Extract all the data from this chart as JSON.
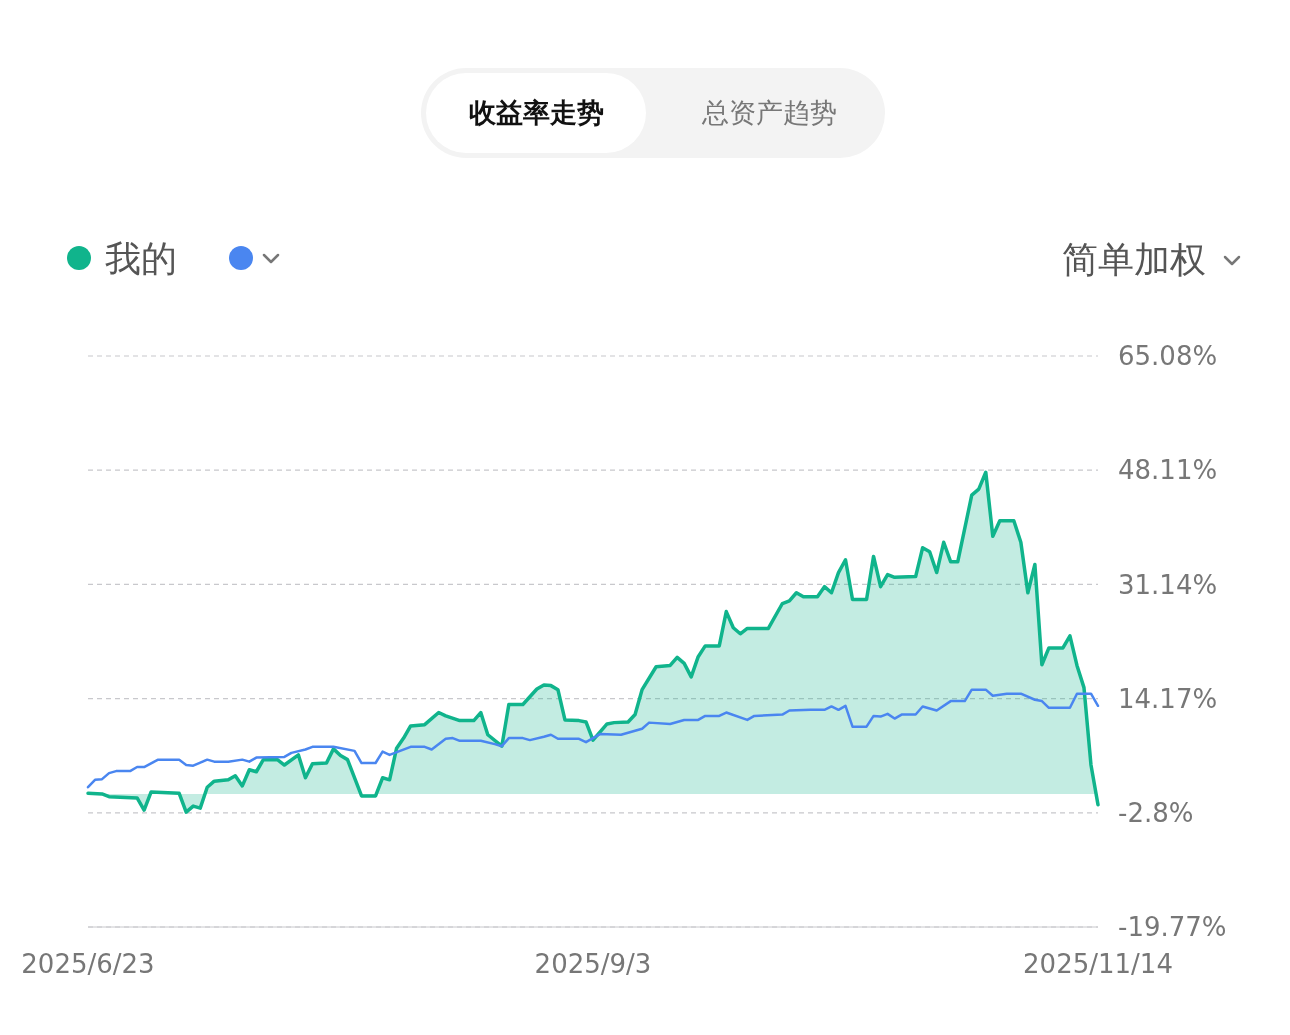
{
  "chart_data": {
    "type": "line",
    "annotations": [
      "收益率走势",
      "总资产趋势",
      "简单加权"
    ],
    "xlim": [
      "2025-06-23",
      "2025-11-14"
    ],
    "xticks": [
      {
        "value": "2025-06-23",
        "label": "2025/6/23"
      },
      {
        "value": "2025-09-03",
        "label": "2025/9/3"
      },
      {
        "value": "2025-11-14",
        "label": "2025/11/14"
      }
    ],
    "ylim": [
      -19.77,
      65.08
    ],
    "yticks": [
      {
        "value": -19.77,
        "label": "-19.77%"
      },
      {
        "value": -2.8,
        "label": "-2.8%"
      },
      {
        "value": 14.17,
        "label": "14.17%"
      },
      {
        "value": 31.14,
        "label": "31.14%"
      },
      {
        "value": 48.11,
        "label": "48.11%"
      },
      {
        "value": 65.08,
        "label": "65.08%"
      }
    ],
    "grid": "y",
    "legend": "top left",
    "line_style": "solid",
    "marker": "none",
    "series": [
      {
        "name": "我的",
        "type": "area",
        "color": "#10b48c",
        "x": [
          "2025-06-23",
          "2025-06-25",
          "2025-06-26",
          "2025-06-30",
          "2025-07-01",
          "2025-07-02",
          "2025-07-06",
          "2025-07-07",
          "2025-07-08",
          "2025-07-09",
          "2025-07-10",
          "2025-07-11",
          "2025-07-13",
          "2025-07-14",
          "2025-07-15",
          "2025-07-16",
          "2025-07-17",
          "2025-07-18",
          "2025-07-20",
          "2025-07-21",
          "2025-07-23",
          "2025-07-24",
          "2025-07-25",
          "2025-07-27",
          "2025-07-28",
          "2025-07-29",
          "2025-07-30",
          "2025-08-01",
          "2025-08-03",
          "2025-08-04",
          "2025-08-05",
          "2025-08-06",
          "2025-08-07",
          "2025-08-08",
          "2025-08-10",
          "2025-08-12",
          "2025-08-13",
          "2025-08-15",
          "2025-08-17",
          "2025-08-18",
          "2025-08-19",
          "2025-08-21",
          "2025-08-22",
          "2025-08-24",
          "2025-08-26",
          "2025-08-27",
          "2025-08-28",
          "2025-08-29",
          "2025-08-30",
          "2025-09-01",
          "2025-09-02",
          "2025-09-03",
          "2025-09-05",
          "2025-09-06",
          "2025-09-08",
          "2025-09-09",
          "2025-09-10",
          "2025-09-12",
          "2025-09-14",
          "2025-09-15",
          "2025-09-16",
          "2025-09-17",
          "2025-09-18",
          "2025-09-19",
          "2025-09-21",
          "2025-09-22",
          "2025-09-23",
          "2025-09-24",
          "2025-09-25",
          "2025-09-28",
          "2025-09-30",
          "2025-10-01",
          "2025-10-02",
          "2025-10-03",
          "2025-10-05",
          "2025-10-06",
          "2025-10-07",
          "2025-10-08",
          "2025-10-09",
          "2025-10-10",
          "2025-10-12",
          "2025-10-13",
          "2025-10-14",
          "2025-10-15",
          "2025-10-16",
          "2025-10-19",
          "2025-10-20",
          "2025-10-21",
          "2025-10-22",
          "2025-10-23",
          "2025-10-24",
          "2025-10-25",
          "2025-10-27",
          "2025-10-28",
          "2025-10-29",
          "2025-10-30",
          "2025-10-31",
          "2025-11-02",
          "2025-11-03",
          "2025-11-04",
          "2025-11-05",
          "2025-11-06",
          "2025-11-07",
          "2025-11-09",
          "2025-11-10",
          "2025-11-11",
          "2025-11-12",
          "2025-11-13",
          "2025-11-14"
        ],
        "values": [
          0.1,
          0.0,
          -0.4,
          -0.6,
          -2.4,
          0.3,
          0.1,
          -2.7,
          -1.8,
          -2.1,
          1.0,
          1.9,
          2.1,
          2.7,
          1.2,
          3.6,
          3.3,
          5.1,
          5.1,
          4.3,
          5.8,
          2.4,
          4.5,
          4.6,
          6.7,
          5.7,
          5.1,
          -0.3,
          -0.3,
          2.4,
          2.1,
          6.8,
          8.3,
          10.1,
          10.3,
          12.1,
          11.6,
          10.9,
          10.9,
          12.1,
          8.8,
          7.1,
          13.3,
          13.3,
          15.6,
          16.2,
          16.1,
          15.5,
          11.0,
          10.9,
          10.7,
          8.0,
          10.4,
          10.6,
          10.7,
          11.8,
          15.5,
          18.9,
          19.1,
          20.3,
          19.4,
          17.4,
          20.4,
          22.0,
          22.0,
          27.1,
          24.7,
          23.8,
          24.6,
          24.6,
          28.3,
          28.7,
          29.9,
          29.3,
          29.3,
          30.8,
          29.9,
          32.9,
          34.8,
          28.9,
          28.9,
          35.3,
          30.8,
          32.6,
          32.2,
          32.3,
          36.6,
          36.0,
          32.9,
          37.4,
          34.5,
          34.5,
          44.4,
          45.3,
          47.8,
          38.3,
          40.6,
          40.6,
          37.4,
          29.9,
          34.1,
          19.2,
          21.7,
          21.7,
          23.5,
          19.1,
          15.8,
          4.3,
          -1.6
        ]
      },
      {
        "color": "#4a86f0",
        "x": [
          "2025-06-23",
          "2025-06-24",
          "2025-06-25",
          "2025-06-26",
          "2025-06-27",
          "2025-06-29",
          "2025-06-30",
          "2025-07-01",
          "2025-07-03",
          "2025-07-06",
          "2025-07-07",
          "2025-07-08",
          "2025-07-10",
          "2025-07-11",
          "2025-07-13",
          "2025-07-15",
          "2025-07-16",
          "2025-07-17",
          "2025-07-21",
          "2025-07-22",
          "2025-07-24",
          "2025-07-25",
          "2025-07-28",
          "2025-07-31",
          "2025-08-01",
          "2025-08-03",
          "2025-08-04",
          "2025-08-05",
          "2025-08-08",
          "2025-08-10",
          "2025-08-11",
          "2025-08-13",
          "2025-08-14",
          "2025-08-15",
          "2025-08-18",
          "2025-08-20",
          "2025-08-21",
          "2025-08-22",
          "2025-08-24",
          "2025-08-25",
          "2025-08-27",
          "2025-08-28",
          "2025-08-29",
          "2025-09-01",
          "2025-09-02",
          "2025-09-04",
          "2025-09-07",
          "2025-09-10",
          "2025-09-11",
          "2025-09-14",
          "2025-09-16",
          "2025-09-18",
          "2025-09-19",
          "2025-09-21",
          "2025-09-22",
          "2025-09-25",
          "2025-09-26",
          "2025-09-30",
          "2025-10-01",
          "2025-10-04",
          "2025-10-06",
          "2025-10-07",
          "2025-10-08",
          "2025-10-09",
          "2025-10-10",
          "2025-10-12",
          "2025-10-13",
          "2025-10-14",
          "2025-10-15",
          "2025-10-16",
          "2025-10-17",
          "2025-10-19",
          "2025-10-20",
          "2025-10-22",
          "2025-10-24",
          "2025-10-26",
          "2025-10-27",
          "2025-10-29",
          "2025-10-30",
          "2025-11-01",
          "2025-11-03",
          "2025-11-05",
          "2025-11-06",
          "2025-11-07",
          "2025-11-10",
          "2025-11-11",
          "2025-11-13",
          "2025-11-14"
        ],
        "values": [
          1.0,
          2.1,
          2.2,
          3.1,
          3.4,
          3.4,
          4.0,
          4.0,
          5.1,
          5.1,
          4.3,
          4.2,
          5.1,
          4.8,
          4.8,
          5.1,
          4.8,
          5.4,
          5.5,
          6.1,
          6.6,
          7.0,
          7.0,
          6.4,
          4.6,
          4.6,
          6.3,
          5.8,
          7.0,
          7.0,
          6.6,
          8.2,
          8.3,
          7.9,
          7.9,
          7.4,
          7.1,
          8.3,
          8.3,
          8.0,
          8.5,
          8.8,
          8.2,
          8.2,
          7.7,
          8.9,
          8.8,
          9.7,
          10.6,
          10.4,
          11.0,
          11.0,
          11.6,
          11.6,
          12.1,
          11.0,
          11.6,
          11.8,
          12.4,
          12.5,
          12.5,
          13.0,
          12.5,
          13.1,
          10.0,
          10.0,
          11.6,
          11.5,
          11.9,
          11.2,
          11.8,
          11.8,
          13.0,
          12.4,
          13.8,
          13.8,
          15.5,
          15.5,
          14.6,
          14.9,
          14.9,
          14.0,
          13.8,
          12.8,
          12.8,
          14.9,
          14.9,
          13.1
        ]
      }
    ]
  }
}
